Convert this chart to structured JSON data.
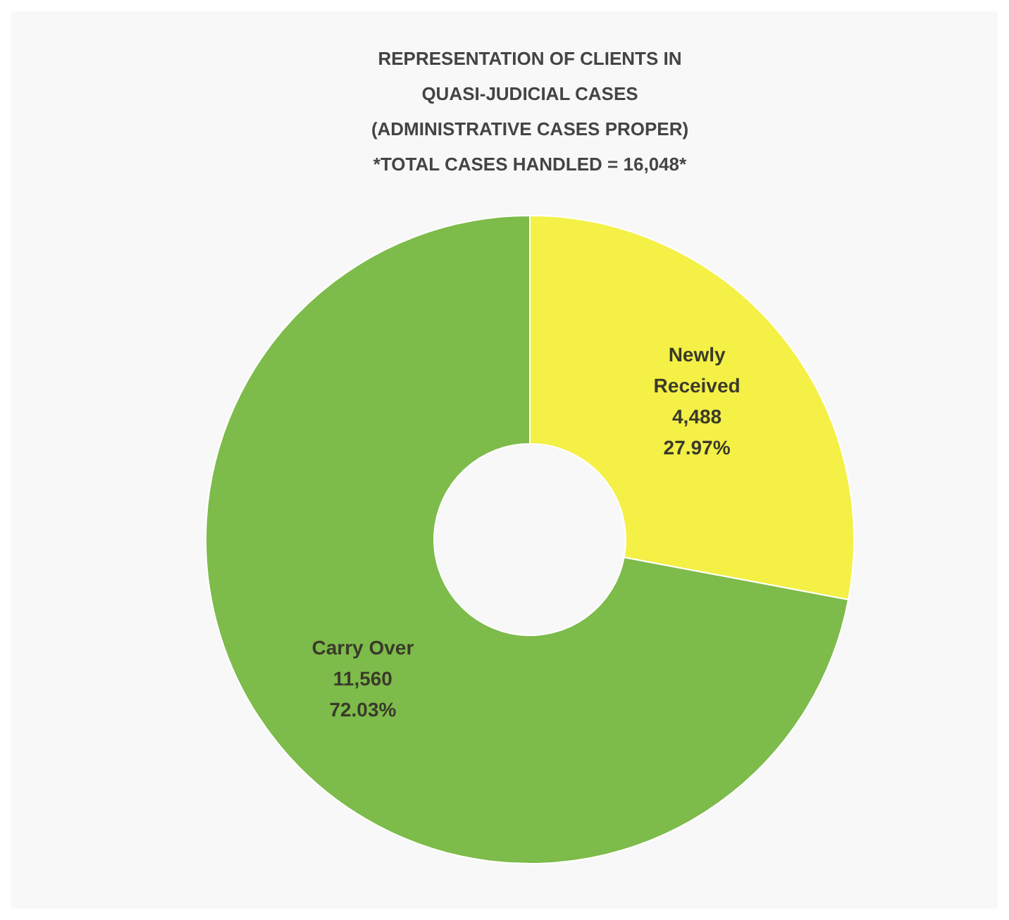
{
  "chart_data": {
    "type": "donut",
    "title": "REPRESENTATION OF CLIENTS IN QUASI-JUDICIAL CASES (ADMINISTRATIVE CASES PROPER)",
    "subtitle": "*TOTAL CASES HANDLED = 16,048*",
    "categories": [
      "Newly Received",
      "Carry Over"
    ],
    "values": [
      4488,
      11560
    ],
    "colors": [
      "#f4f046",
      "#7dbb4a"
    ],
    "value_labels": [
      "4,488\n27.97%",
      "11,560\n72.03%"
    ]
  }
}
